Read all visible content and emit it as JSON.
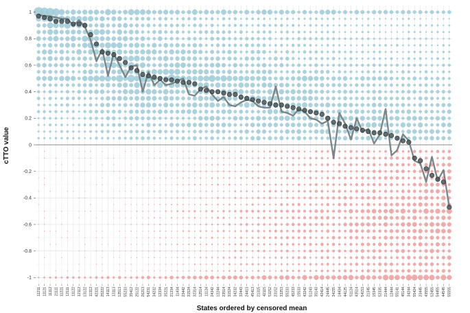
{
  "chart_data": {
    "type": "scatter",
    "xlabel": "States ordered by censored mean",
    "ylabel": "cTTO value",
    "ylim": [
      -1.05,
      1.05
    ],
    "yticks": [
      "1",
      "0.8",
      "0.6",
      "0.4",
      "0.2",
      "0",
      "-0.2",
      "-0.4",
      "-0.6",
      "-0.8",
      "-1"
    ],
    "grid": true,
    "colors": {
      "positive_dots": "#9ecad8",
      "negative_dots": "#ec9e9e",
      "mean_points": "#4a5658",
      "mean_line": "#6f7b7d",
      "zero_line": "#8a8a8a",
      "grid": "#e6e6e6"
    },
    "states": [
      "11211",
      "11121",
      "11112",
      "21111",
      "11221",
      "12111",
      "11122",
      "12112",
      "13122",
      "11312",
      "42321",
      "25222",
      "14113",
      "13113",
      "12513",
      "55233",
      "35412",
      "25122",
      "26213",
      "54231",
      "34232",
      "12334",
      "35221",
      "21334",
      "11434",
      "23442",
      "31524",
      "32314",
      "12514",
      "11124",
      "24342",
      "12244",
      "23514",
      "31524",
      "34232",
      "32443",
      "24413",
      "45413",
      "21315",
      "42115",
      "51152",
      "23152",
      "33253",
      "55233",
      "45233",
      "15533",
      "43242",
      "51243",
      "35143",
      "42414",
      "24445",
      "34155",
      "14434",
      "44125",
      "51124",
      "43514",
      "54153",
      "21345",
      "15345",
      "52335",
      "21444",
      "12444",
      "55141",
      "45144",
      "34244",
      "55424",
      "23445",
      "43555",
      "52455",
      "54455",
      "44545",
      "55555"
    ],
    "censored_mean": [
      0.97,
      0.96,
      0.95,
      0.93,
      0.93,
      0.93,
      0.91,
      0.91,
      0.9,
      0.83,
      0.76,
      0.7,
      0.69,
      0.68,
      0.65,
      0.62,
      0.58,
      0.56,
      0.53,
      0.52,
      0.51,
      0.5,
      0.49,
      0.49,
      0.48,
      0.47,
      0.47,
      0.46,
      0.42,
      0.41,
      0.4,
      0.4,
      0.39,
      0.38,
      0.38,
      0.36,
      0.35,
      0.34,
      0.33,
      0.32,
      0.31,
      0.3,
      0.3,
      0.29,
      0.28,
      0.27,
      0.26,
      0.25,
      0.24,
      0.23,
      0.2,
      0.17,
      0.16,
      0.14,
      0.13,
      0.12,
      0.11,
      0.1,
      0.09,
      0.09,
      0.08,
      0.07,
      0.05,
      0.03,
      0.02,
      -0.1,
      -0.12,
      -0.18,
      -0.23,
      -0.26,
      -0.28,
      -0.47
    ],
    "raw_mean": [
      0.98,
      0.97,
      0.97,
      0.96,
      0.95,
      0.95,
      0.9,
      0.94,
      0.89,
      0.79,
      0.63,
      0.72,
      0.52,
      0.69,
      0.6,
      0.51,
      0.59,
      0.6,
      0.4,
      0.55,
      0.45,
      0.49,
      0.45,
      0.46,
      0.48,
      0.5,
      0.38,
      0.37,
      0.42,
      0.44,
      0.38,
      0.33,
      0.36,
      0.3,
      0.29,
      0.32,
      0.34,
      0.33,
      0.29,
      0.28,
      0.28,
      0.44,
      0.25,
      0.24,
      0.22,
      0.27,
      0.25,
      0.2,
      0.19,
      0.16,
      0.18,
      -0.1,
      0.24,
      0.16,
      0.04,
      0.2,
      0.1,
      0.12,
      0.01,
      0.08,
      0.27,
      -0.08,
      -0.04,
      0.08,
      0.03,
      -0.12,
      -0.14,
      -0.28,
      -0.09,
      -0.27,
      -0.19,
      -0.47
    ]
  }
}
